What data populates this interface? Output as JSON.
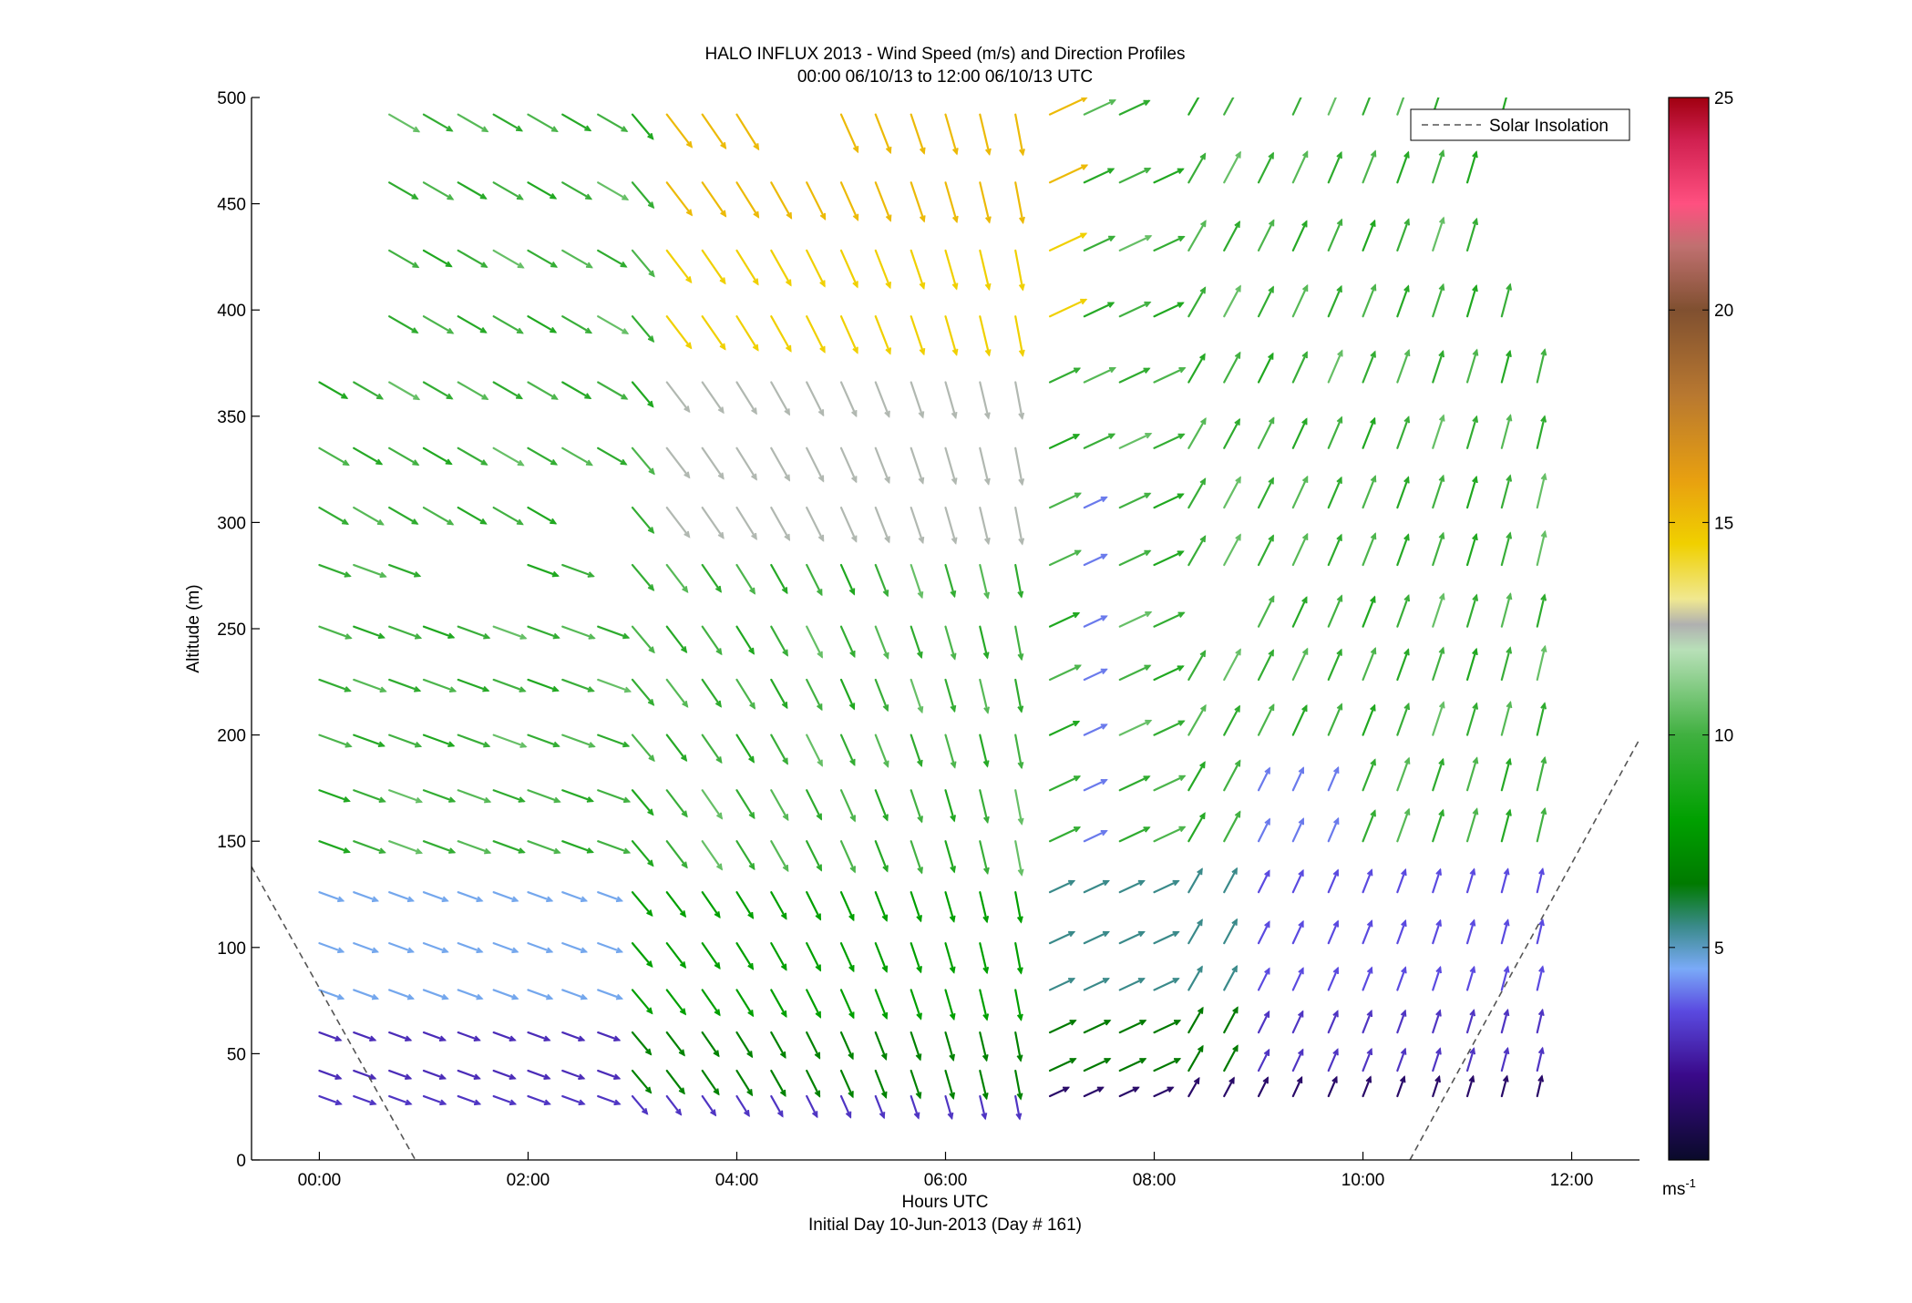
{
  "chart_data": {
    "type": "quiver",
    "title": "HALO INFLUX 2013 - Wind Speed (m/s) and Direction Profiles",
    "subtitle": "00:00 06/10/13 to 12:00 06/10/13  UTC",
    "xlabel": "Hours UTC",
    "xlabel2": "Initial Day 10-Jun-2013 (Day # 161)",
    "ylabel": "Altitude (m)",
    "xlim": [
      -0.65,
      12.65
    ],
    "ylim": [
      0,
      500
    ],
    "x_ticks": [
      {
        "value": 0,
        "label": "00:00"
      },
      {
        "value": 2,
        "label": "02:00"
      },
      {
        "value": 4,
        "label": "04:00"
      },
      {
        "value": 6,
        "label": "06:00"
      },
      {
        "value": 8,
        "label": "08:00"
      },
      {
        "value": 10,
        "label": "10:00"
      },
      {
        "value": 12,
        "label": "12:00"
      }
    ],
    "y_ticks": [
      0,
      50,
      100,
      150,
      200,
      250,
      300,
      350,
      400,
      450,
      500
    ],
    "grid": false,
    "legend": {
      "position": "top-right",
      "entries": [
        "Solar Insolation"
      ]
    },
    "colorbar": {
      "min": 0,
      "max": 25,
      "ticks": [
        5,
        10,
        15,
        20,
        25
      ],
      "unit_label": "ms",
      "unit_exponent": "-1",
      "stops": [
        {
          "v": 0,
          "c": "#0a0a2a"
        },
        {
          "v": 2,
          "c": "#3a0a8a"
        },
        {
          "v": 3.5,
          "c": "#5a4ae0"
        },
        {
          "v": 4.5,
          "c": "#7aaaf8"
        },
        {
          "v": 5.5,
          "c": "#3a8a8a"
        },
        {
          "v": 6.5,
          "c": "#007a00"
        },
        {
          "v": 8,
          "c": "#00a000"
        },
        {
          "v": 10,
          "c": "#40b040"
        },
        {
          "v": 12,
          "c": "#b8e0b8"
        },
        {
          "v": 12.6,
          "c": "#b0b0b0"
        },
        {
          "v": 13.2,
          "c": "#f0e890"
        },
        {
          "v": 14.5,
          "c": "#f0d000"
        },
        {
          "v": 16,
          "c": "#e8a010"
        },
        {
          "v": 18,
          "c": "#b87830"
        },
        {
          "v": 20,
          "c": "#805030"
        },
        {
          "v": 21.5,
          "c": "#c07070"
        },
        {
          "v": 22.5,
          "c": "#ff5080"
        },
        {
          "v": 24,
          "c": "#d02050"
        },
        {
          "v": 25,
          "c": "#a00010"
        }
      ]
    },
    "solar_insolation": {
      "left": [
        [
          -0.65,
          138
        ],
        [
          0.92,
          0
        ]
      ],
      "right": [
        [
          10.45,
          0
        ],
        [
          12.65,
          198
        ]
      ]
    },
    "altitudes": [
      30,
      42,
      60,
      80,
      102,
      126,
      150,
      174,
      200,
      226,
      251,
      280,
      307,
      335,
      366,
      397,
      428,
      460,
      492
    ],
    "times": [
      0,
      0.33,
      0.67,
      1,
      1.33,
      1.67,
      2,
      2.33,
      2.67,
      3,
      3.33,
      3.67,
      4,
      4.33,
      4.67,
      5,
      5.33,
      5.67,
      6,
      6.33,
      6.67,
      7,
      7.33,
      7.67,
      8,
      8.33,
      8.67,
      9,
      9.33,
      9.67,
      10,
      10.33,
      10.67,
      11,
      11.33,
      11.67
    ],
    "wind_speed_units": "m/s",
    "wind_direction_units": "degrees (arrow direction of flow, 0 = north, clockwise)",
    "wind_field_note": "approximate reconstruction of the plotted arrows"
  }
}
